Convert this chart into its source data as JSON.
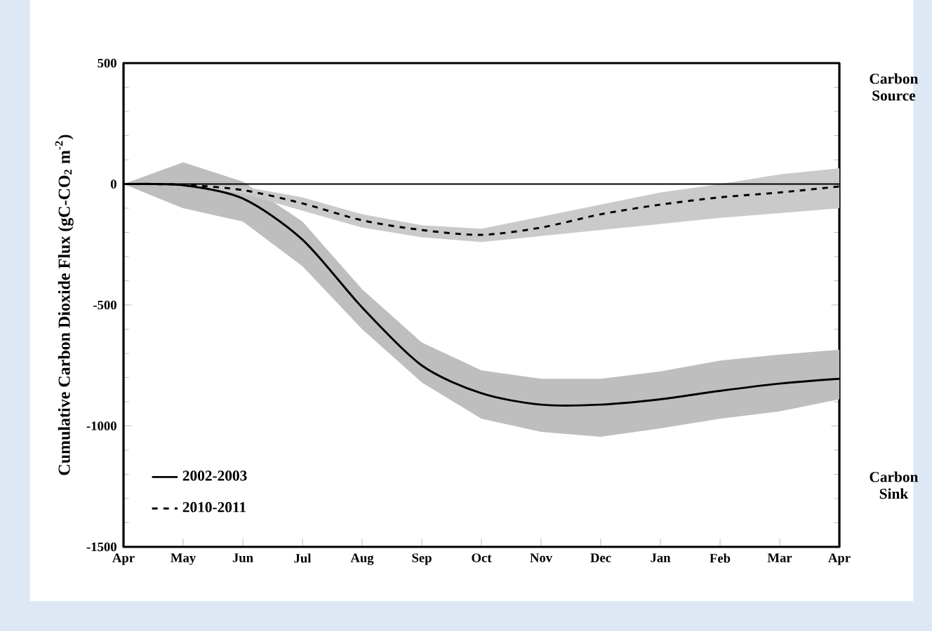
{
  "chart_data": {
    "type": "line",
    "ylabel": "Cumulative Carbon Dioxide Flux (gC-CO$_{2}$ m$^{-2}$)",
    "categories": [
      "Apr",
      "May",
      "Jun",
      "Jul",
      "Aug",
      "Sep",
      "Oct",
      "Nov",
      "Dec",
      "Jan",
      "Feb",
      "Mar",
      "Apr"
    ],
    "ylim": [
      -1500,
      500
    ],
    "yticks": [
      -1500,
      -1000,
      -500,
      0,
      500
    ],
    "series": [
      {
        "name": "2002-2003",
        "color": "#000000",
        "line_style": "solid",
        "values": [
          0,
          -5,
          -60,
          -230,
          -510,
          -750,
          -865,
          -912,
          -912,
          -890,
          -855,
          -825,
          -805
        ],
        "lower": [
          0,
          -100,
          -155,
          -340,
          -600,
          -820,
          -970,
          -1025,
          -1045,
          -1010,
          -970,
          -940,
          -890
        ],
        "upper": [
          0,
          90,
          10,
          -155,
          -435,
          -655,
          -770,
          -805,
          -805,
          -775,
          -730,
          -705,
          -685
        ]
      },
      {
        "name": "2010-2011",
        "color": "#000000",
        "line_style": "dashed",
        "values": [
          0,
          -3,
          -25,
          -80,
          -150,
          -190,
          -210,
          -180,
          -125,
          -85,
          -55,
          -35,
          -10
        ],
        "lower": [
          0,
          -10,
          -40,
          -110,
          -180,
          -220,
          -240,
          -215,
          -190,
          -165,
          -140,
          -120,
          -100
        ],
        "upper": [
          0,
          0,
          -10,
          -55,
          -125,
          -170,
          -185,
          -135,
          -85,
          -35,
          0,
          40,
          65
        ]
      }
    ],
    "ref_lines": [
      {
        "axis": "y",
        "value": 0,
        "color": "#000000"
      }
    ],
    "annotations": [
      "Carbon Source",
      "Carbon Sink"
    ],
    "legend": "bottom left",
    "grid": false,
    "marker": "none"
  }
}
